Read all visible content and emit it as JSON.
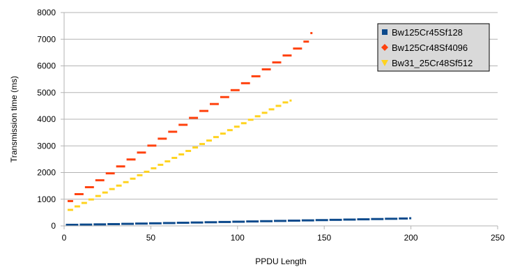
{
  "chart_data": {
    "type": "scatter",
    "title": "",
    "xlabel": "PPDU Length",
    "ylabel": "Transmission time (ms)",
    "xlim": [
      0,
      250
    ],
    "ylim": [
      0,
      8000
    ],
    "x_ticks": [
      "0",
      "50",
      "100",
      "150",
      "200",
      "250"
    ],
    "y_ticks": [
      "0",
      "1000",
      "2000",
      "3000",
      "4000",
      "5000",
      "6000",
      "7000",
      "8000"
    ],
    "grid": "horizontal",
    "legend_position": "top-right",
    "series": [
      {
        "name": "Bw125Cr45Sf128",
        "color": "#0d4a8c",
        "marker": "square",
        "note_steps": "staircase with step width 8 bytes",
        "points": [
          [
            1,
            40
          ],
          [
            9,
            48
          ],
          [
            17,
            56
          ],
          [
            25,
            66
          ],
          [
            33,
            76
          ],
          [
            41,
            86
          ],
          [
            49,
            96
          ],
          [
            57,
            106
          ],
          [
            65,
            116
          ],
          [
            73,
            126
          ],
          [
            81,
            136
          ],
          [
            89,
            146
          ],
          [
            97,
            156
          ],
          [
            105,
            166
          ],
          [
            113,
            176
          ],
          [
            121,
            186
          ],
          [
            129,
            196
          ],
          [
            137,
            206
          ],
          [
            145,
            216
          ],
          [
            153,
            226
          ],
          [
            161,
            236
          ],
          [
            169,
            246
          ],
          [
            177,
            256
          ],
          [
            185,
            266
          ],
          [
            193,
            276
          ],
          [
            199,
            286
          ]
        ]
      },
      {
        "name": "Bw125Cr48Sf4096",
        "color": "#ff420e",
        "marker": "diamond",
        "points": [
          [
            2,
            930
          ],
          [
            6,
            1190
          ],
          [
            12,
            1450
          ],
          [
            18,
            1710
          ],
          [
            24,
            1970
          ],
          [
            30,
            2230
          ],
          [
            36,
            2490
          ],
          [
            42,
            2750
          ],
          [
            48,
            3010
          ],
          [
            54,
            3270
          ],
          [
            60,
            3530
          ],
          [
            66,
            3790
          ],
          [
            72,
            4050
          ],
          [
            78,
            4310
          ],
          [
            84,
            4570
          ],
          [
            90,
            4830
          ],
          [
            96,
            5090
          ],
          [
            102,
            5350
          ],
          [
            108,
            5610
          ],
          [
            114,
            5870
          ],
          [
            120,
            6130
          ],
          [
            126,
            6390
          ],
          [
            132,
            6650
          ],
          [
            138,
            6910
          ],
          [
            142,
            7230
          ]
        ]
      },
      {
        "name": "Bw31_25Cr48Sf512",
        "color": "#ffd320",
        "marker": "triangle-down",
        "points": [
          [
            2,
            600
          ],
          [
            6,
            730
          ],
          [
            10,
            860
          ],
          [
            14,
            990
          ],
          [
            18,
            1120
          ],
          [
            22,
            1250
          ],
          [
            26,
            1380
          ],
          [
            30,
            1510
          ],
          [
            34,
            1640
          ],
          [
            38,
            1770
          ],
          [
            42,
            1900
          ],
          [
            46,
            2030
          ],
          [
            50,
            2160
          ],
          [
            54,
            2290
          ],
          [
            58,
            2420
          ],
          [
            62,
            2550
          ],
          [
            66,
            2680
          ],
          [
            70,
            2810
          ],
          [
            74,
            2940
          ],
          [
            78,
            3070
          ],
          [
            82,
            3200
          ],
          [
            86,
            3330
          ],
          [
            90,
            3460
          ],
          [
            94,
            3590
          ],
          [
            98,
            3720
          ],
          [
            102,
            3850
          ],
          [
            106,
            3980
          ],
          [
            110,
            4110
          ],
          [
            114,
            4240
          ],
          [
            118,
            4370
          ],
          [
            122,
            4500
          ],
          [
            126,
            4630
          ],
          [
            130,
            4700
          ]
        ]
      }
    ]
  }
}
